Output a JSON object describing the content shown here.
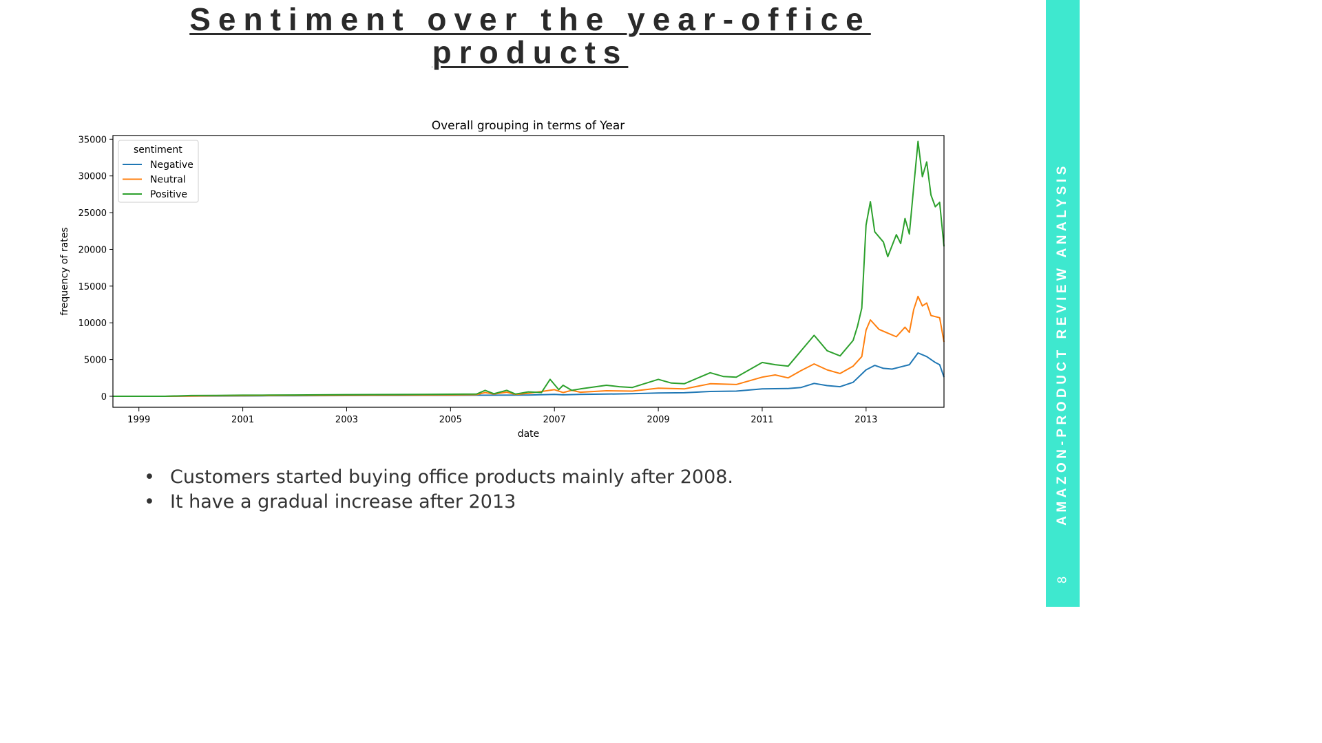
{
  "slide": {
    "title": "Sentiment  over the year-office products",
    "side_label": "AMAZON-PRODUCT REVIEW ANALYSIS",
    "page_number": "8",
    "band_color": "#3ee8cf",
    "bullets": [
      "Customers started buying office products mainly after 2008.",
      "It have a gradual increase after 2013"
    ]
  },
  "chart_data": {
    "type": "line",
    "title": "Overall grouping in terms of Year",
    "xlabel": "date",
    "ylabel": "frequency of rates",
    "xlim": [
      "1998-07",
      "2014-07"
    ],
    "ylim": [
      -1500,
      35500
    ],
    "x_ticks": [
      "1999",
      "2001",
      "2003",
      "2005",
      "2007",
      "2009",
      "2011",
      "2013"
    ],
    "y_ticks": [
      0,
      5000,
      10000,
      15000,
      20000,
      25000,
      30000,
      35000
    ],
    "legend": {
      "title": "sentiment",
      "position": "top-left"
    },
    "grid": false,
    "series": [
      {
        "name": "Negative",
        "color": "#1f77b4",
        "points": [
          [
            "1998-07",
            0
          ],
          [
            "1999-07",
            0
          ],
          [
            "2000-01",
            20
          ],
          [
            "2000-07",
            40
          ],
          [
            "2001-01",
            50
          ],
          [
            "2001-07",
            60
          ],
          [
            "2002-01",
            70
          ],
          [
            "2002-07",
            80
          ],
          [
            "2003-01",
            90
          ],
          [
            "2003-07",
            100
          ],
          [
            "2004-01",
            100
          ],
          [
            "2004-07",
            110
          ],
          [
            "2005-01",
            120
          ],
          [
            "2005-07",
            140
          ],
          [
            "2006-01",
            150
          ],
          [
            "2006-07",
            170
          ],
          [
            "2007-01",
            250
          ],
          [
            "2007-03",
            200
          ],
          [
            "2007-07",
            250
          ],
          [
            "2008-01",
            300
          ],
          [
            "2008-07",
            350
          ],
          [
            "2009-01",
            450
          ],
          [
            "2009-07",
            480
          ],
          [
            "2010-01",
            650
          ],
          [
            "2010-07",
            700
          ],
          [
            "2011-01",
            1000
          ],
          [
            "2011-07",
            1050
          ],
          [
            "2011-10",
            1200
          ],
          [
            "2012-01",
            1750
          ],
          [
            "2012-04",
            1450
          ],
          [
            "2012-07",
            1300
          ],
          [
            "2012-10",
            1900
          ],
          [
            "2013-01",
            3600
          ],
          [
            "2013-03",
            4200
          ],
          [
            "2013-05",
            3800
          ],
          [
            "2013-07",
            3700
          ],
          [
            "2013-09",
            4000
          ],
          [
            "2013-11",
            4300
          ],
          [
            "2014-01",
            5900
          ],
          [
            "2014-03",
            5400
          ],
          [
            "2014-05",
            4600
          ],
          [
            "2014-06",
            4300
          ],
          [
            "2014-07",
            2600
          ]
        ]
      },
      {
        "name": "Neutral",
        "color": "#ff7f0e",
        "points": [
          [
            "1998-07",
            0
          ],
          [
            "1999-07",
            0
          ],
          [
            "2000-01",
            40
          ],
          [
            "2000-07",
            70
          ],
          [
            "2001-01",
            80
          ],
          [
            "2001-07",
            90
          ],
          [
            "2002-01",
            110
          ],
          [
            "2002-07",
            120
          ],
          [
            "2003-01",
            140
          ],
          [
            "2003-07",
            150
          ],
          [
            "2004-01",
            160
          ],
          [
            "2004-07",
            170
          ],
          [
            "2005-01",
            180
          ],
          [
            "2005-07",
            220
          ],
          [
            "2005-09",
            500
          ],
          [
            "2005-11",
            300
          ],
          [
            "2006-02",
            550
          ],
          [
            "2006-04",
            250
          ],
          [
            "2006-07",
            400
          ],
          [
            "2007-01",
            900
          ],
          [
            "2007-03",
            500
          ],
          [
            "2007-05",
            800
          ],
          [
            "2007-07",
            550
          ],
          [
            "2008-01",
            750
          ],
          [
            "2008-07",
            700
          ],
          [
            "2009-01",
            1100
          ],
          [
            "2009-07",
            1000
          ],
          [
            "2010-01",
            1700
          ],
          [
            "2010-07",
            1600
          ],
          [
            "2011-01",
            2600
          ],
          [
            "2011-04",
            2900
          ],
          [
            "2011-07",
            2500
          ],
          [
            "2011-10",
            3500
          ],
          [
            "2012-01",
            4400
          ],
          [
            "2012-04",
            3600
          ],
          [
            "2012-07",
            3100
          ],
          [
            "2012-10",
            4100
          ],
          [
            "2012-12",
            5400
          ],
          [
            "2013-01",
            9000
          ],
          [
            "2013-02",
            10400
          ],
          [
            "2013-04",
            9100
          ],
          [
            "2013-06",
            8600
          ],
          [
            "2013-08",
            8100
          ],
          [
            "2013-10",
            9400
          ],
          [
            "2013-11",
            8700
          ],
          [
            "2013-12",
            11800
          ],
          [
            "2014-01",
            13600
          ],
          [
            "2014-02",
            12300
          ],
          [
            "2014-03",
            12700
          ],
          [
            "2014-04",
            11000
          ],
          [
            "2014-06",
            10700
          ],
          [
            "2014-07",
            7400
          ]
        ]
      },
      {
        "name": "Positive",
        "color": "#2ca02c",
        "points": [
          [
            "1998-07",
            0
          ],
          [
            "1999-07",
            0
          ],
          [
            "2000-01",
            100
          ],
          [
            "2000-07",
            120
          ],
          [
            "2001-01",
            150
          ],
          [
            "2001-07",
            160
          ],
          [
            "2002-01",
            180
          ],
          [
            "2002-07",
            200
          ],
          [
            "2003-01",
            220
          ],
          [
            "2003-07",
            230
          ],
          [
            "2004-01",
            240
          ],
          [
            "2004-07",
            250
          ],
          [
            "2005-01",
            280
          ],
          [
            "2005-07",
            300
          ],
          [
            "2005-09",
            800
          ],
          [
            "2005-11",
            350
          ],
          [
            "2006-02",
            800
          ],
          [
            "2006-04",
            300
          ],
          [
            "2006-07",
            600
          ],
          [
            "2006-10",
            500
          ],
          [
            "2006-12",
            2300
          ],
          [
            "2007-02",
            900
          ],
          [
            "2007-03",
            1500
          ],
          [
            "2007-05",
            800
          ],
          [
            "2007-07",
            1000
          ],
          [
            "2008-01",
            1500
          ],
          [
            "2008-04",
            1300
          ],
          [
            "2008-07",
            1200
          ],
          [
            "2009-01",
            2300
          ],
          [
            "2009-04",
            1800
          ],
          [
            "2009-07",
            1700
          ],
          [
            "2010-01",
            3200
          ],
          [
            "2010-04",
            2700
          ],
          [
            "2010-07",
            2600
          ],
          [
            "2011-01",
            4600
          ],
          [
            "2011-04",
            4300
          ],
          [
            "2011-07",
            4100
          ],
          [
            "2011-10",
            6200
          ],
          [
            "2012-01",
            8300
          ],
          [
            "2012-04",
            6200
          ],
          [
            "2012-07",
            5500
          ],
          [
            "2012-10",
            7600
          ],
          [
            "2012-11",
            9500
          ],
          [
            "2012-12",
            12000
          ],
          [
            "2013-01",
            23300
          ],
          [
            "2013-02",
            26500
          ],
          [
            "2013-03",
            22400
          ],
          [
            "2013-05",
            21000
          ],
          [
            "2013-06",
            19000
          ],
          [
            "2013-08",
            22000
          ],
          [
            "2013-09",
            20800
          ],
          [
            "2013-10",
            24200
          ],
          [
            "2013-11",
            22100
          ],
          [
            "2013-12",
            28500
          ],
          [
            "2014-01",
            34700
          ],
          [
            "2014-02",
            29900
          ],
          [
            "2014-03",
            31900
          ],
          [
            "2014-04",
            27400
          ],
          [
            "2014-05",
            25800
          ],
          [
            "2014-06",
            26400
          ],
          [
            "2014-07",
            20400
          ]
        ]
      }
    ]
  }
}
